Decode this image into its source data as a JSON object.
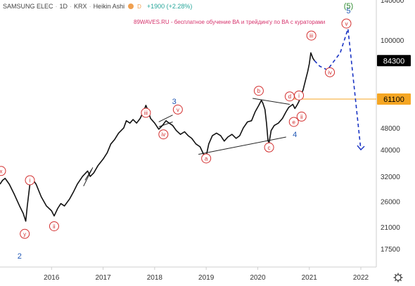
{
  "header": {
    "symbol": "SAMSUNG ELEC",
    "interval": "1D",
    "exchange": "KRX",
    "chart_style": "Heikin Ashi",
    "badge": "D",
    "change": "+1900 (+2.28%)"
  },
  "banner": "89WAVES.RU - бесплатное обучение ВА и трейдингу по ВА с кураторами",
  "settings_icon": "gear-icon",
  "colors": {
    "price_line": "#111111",
    "wave_labels": "#d32f2f",
    "major_wave": "#1e56b4",
    "cycle_wave": "#2e8b2e",
    "forecast": "#1a34c4",
    "level_line": "#f5a623",
    "current_price_tag": "#000000"
  },
  "chart_data": {
    "type": "line",
    "scale": "log",
    "x_ticks": [
      "2016",
      "2017",
      "2018",
      "2019",
      "2020",
      "2021",
      "2022"
    ],
    "y_ticks": [
      17500,
      21000,
      26000,
      32000,
      40000,
      48000,
      61100,
      84300,
      100000,
      140000
    ],
    "ylim": [
      15000,
      140000
    ],
    "xlim": [
      2015.0,
      2022.3
    ],
    "price_tags": [
      {
        "label": "84300",
        "value": 84300,
        "style": "current"
      },
      {
        "label": "61100",
        "value": 61100,
        "style": "level"
      }
    ],
    "series": [
      {
        "points": [
          [
            2015.0,
            30000
          ],
          [
            2015.05,
            31000
          ],
          [
            2015.1,
            31500
          ],
          [
            2015.18,
            30000
          ],
          [
            2015.28,
            27500
          ],
          [
            2015.38,
            25000
          ],
          [
            2015.45,
            23500
          ],
          [
            2015.5,
            22000
          ],
          [
            2015.53,
            25000
          ],
          [
            2015.58,
            30000
          ],
          [
            2015.62,
            31500
          ],
          [
            2015.7,
            30000
          ],
          [
            2015.8,
            27000
          ],
          [
            2015.9,
            25000
          ],
          [
            2016.0,
            24000
          ],
          [
            2016.05,
            23000
          ],
          [
            2016.12,
            24500
          ],
          [
            2016.18,
            25500
          ],
          [
            2016.25,
            25000
          ],
          [
            2016.35,
            26500
          ],
          [
            2016.42,
            28000
          ],
          [
            2016.5,
            30000
          ],
          [
            2016.6,
            32000
          ],
          [
            2016.7,
            33500
          ],
          [
            2016.75,
            32000
          ],
          [
            2016.82,
            33000
          ],
          [
            2016.9,
            35000
          ],
          [
            2017.0,
            37000
          ],
          [
            2017.08,
            39000
          ],
          [
            2017.15,
            42000
          ],
          [
            2017.22,
            43500
          ],
          [
            2017.3,
            46000
          ],
          [
            2017.4,
            48000
          ],
          [
            2017.45,
            51000
          ],
          [
            2017.52,
            50000
          ],
          [
            2017.58,
            51500
          ],
          [
            2017.65,
            50000
          ],
          [
            2017.72,
            52000
          ],
          [
            2017.8,
            56000
          ],
          [
            2017.83,
            58000
          ],
          [
            2017.88,
            55000
          ],
          [
            2017.92,
            52000
          ],
          [
            2018.0,
            50000
          ],
          [
            2018.08,
            47500
          ],
          [
            2018.15,
            49000
          ],
          [
            2018.22,
            51000
          ],
          [
            2018.28,
            50000
          ],
          [
            2018.35,
            49000
          ],
          [
            2018.42,
            47000
          ],
          [
            2018.5,
            45500
          ],
          [
            2018.58,
            46500
          ],
          [
            2018.65,
            45000
          ],
          [
            2018.72,
            44000
          ],
          [
            2018.8,
            42000
          ],
          [
            2018.88,
            41000
          ],
          [
            2018.95,
            38500
          ],
          [
            2019.0,
            38000
          ],
          [
            2019.05,
            42000
          ],
          [
            2019.12,
            45000
          ],
          [
            2019.2,
            46000
          ],
          [
            2019.28,
            45000
          ],
          [
            2019.35,
            43000
          ],
          [
            2019.42,
            44500
          ],
          [
            2019.5,
            45500
          ],
          [
            2019.58,
            44000
          ],
          [
            2019.65,
            45000
          ],
          [
            2019.72,
            48000
          ],
          [
            2019.8,
            50500
          ],
          [
            2019.88,
            51000
          ],
          [
            2019.95,
            55000
          ],
          [
            2020.02,
            58000
          ],
          [
            2020.07,
            60500
          ],
          [
            2020.1,
            59000
          ],
          [
            2020.14,
            56000
          ],
          [
            2020.17,
            50000
          ],
          [
            2020.2,
            43000
          ],
          [
            2020.22,
            42500
          ],
          [
            2020.26,
            47000
          ],
          [
            2020.32,
            49000
          ],
          [
            2020.4,
            50000
          ],
          [
            2020.48,
            52000
          ],
          [
            2020.55,
            55000
          ],
          [
            2020.6,
            57000
          ],
          [
            2020.68,
            58500
          ],
          [
            2020.72,
            56500
          ],
          [
            2020.76,
            58000
          ],
          [
            2020.8,
            60000
          ],
          [
            2020.85,
            64000
          ],
          [
            2020.88,
            66000
          ],
          [
            2020.93,
            72000
          ],
          [
            2020.97,
            77000
          ],
          [
            2021.0,
            82000
          ],
          [
            2021.03,
            90000
          ],
          [
            2021.07,
            86000
          ],
          [
            2021.1,
            84300
          ]
        ]
      }
    ],
    "forecast": [
      [
        2021.1,
        84300
      ],
      [
        2021.2,
        80500
      ],
      [
        2021.35,
        78000
      ],
      [
        2021.6,
        90000
      ],
      [
        2021.75,
        110000
      ],
      [
        2022.0,
        40000
      ]
    ],
    "trendlines": [
      [
        [
          2016.65,
          31000
        ],
        [
          2016.78,
          34000
        ]
      ],
      [
        [
          2016.62,
          29500
        ],
        [
          2016.8,
          34500
        ]
      ],
      [
        [
          2018.08,
          50500
        ],
        [
          2018.35,
          53500
        ]
      ],
      [
        [
          2018.08,
          48500
        ],
        [
          2018.35,
          50500
        ]
      ],
      [
        [
          2018.85,
          38500
        ],
        [
          2020.55,
          44500
        ]
      ],
      [
        [
          2019.9,
          61500
        ],
        [
          2020.62,
          58500
        ]
      ]
    ],
    "wave_labels": [
      {
        "text": "x",
        "x": 2015.02,
        "y": 33500,
        "style": "circle"
      },
      {
        "text": "y",
        "x": 2015.48,
        "y": 19800,
        "style": "circle"
      },
      {
        "text": "i",
        "x": 2015.58,
        "y": 31000,
        "style": "circle"
      },
      {
        "text": "ii",
        "x": 2016.05,
        "y": 21100,
        "style": "circle"
      },
      {
        "text": "iii",
        "x": 2017.83,
        "y": 54500,
        "style": "circle"
      },
      {
        "text": "iv",
        "x": 2018.17,
        "y": 45500,
        "style": "circle"
      },
      {
        "text": "v",
        "x": 2018.45,
        "y": 56000,
        "style": "circle"
      },
      {
        "text": "a",
        "x": 2019.0,
        "y": 37200,
        "style": "circle"
      },
      {
        "text": "b",
        "x": 2020.02,
        "y": 65500,
        "style": "circle"
      },
      {
        "text": "c",
        "x": 2020.22,
        "y": 40800,
        "style": "circle"
      },
      {
        "text": "d",
        "x": 2020.62,
        "y": 62500,
        "style": "circle"
      },
      {
        "text": "e",
        "x": 2020.7,
        "y": 50500,
        "style": "circle"
      },
      {
        "text": "i",
        "x": 2020.8,
        "y": 63000,
        "style": "circle"
      },
      {
        "text": "ii",
        "x": 2020.85,
        "y": 52800,
        "style": "circle"
      },
      {
        "text": "iii",
        "x": 2021.04,
        "y": 104000,
        "style": "circle"
      },
      {
        "text": "iv",
        "x": 2021.4,
        "y": 76500,
        "style": "circle"
      },
      {
        "text": "v",
        "x": 2021.72,
        "y": 115000,
        "style": "circle"
      },
      {
        "text": "2",
        "x": 2015.38,
        "y": 16500,
        "style": "major"
      },
      {
        "text": "3",
        "x": 2018.38,
        "y": 60000,
        "style": "major"
      },
      {
        "text": "4",
        "x": 2020.72,
        "y": 45500,
        "style": "major"
      },
      {
        "text": "5",
        "x": 2021.76,
        "y": 128000,
        "style": "major"
      },
      {
        "text": "(5)",
        "x": 2021.76,
        "y": 142000,
        "style": "cycle"
      }
    ]
  }
}
